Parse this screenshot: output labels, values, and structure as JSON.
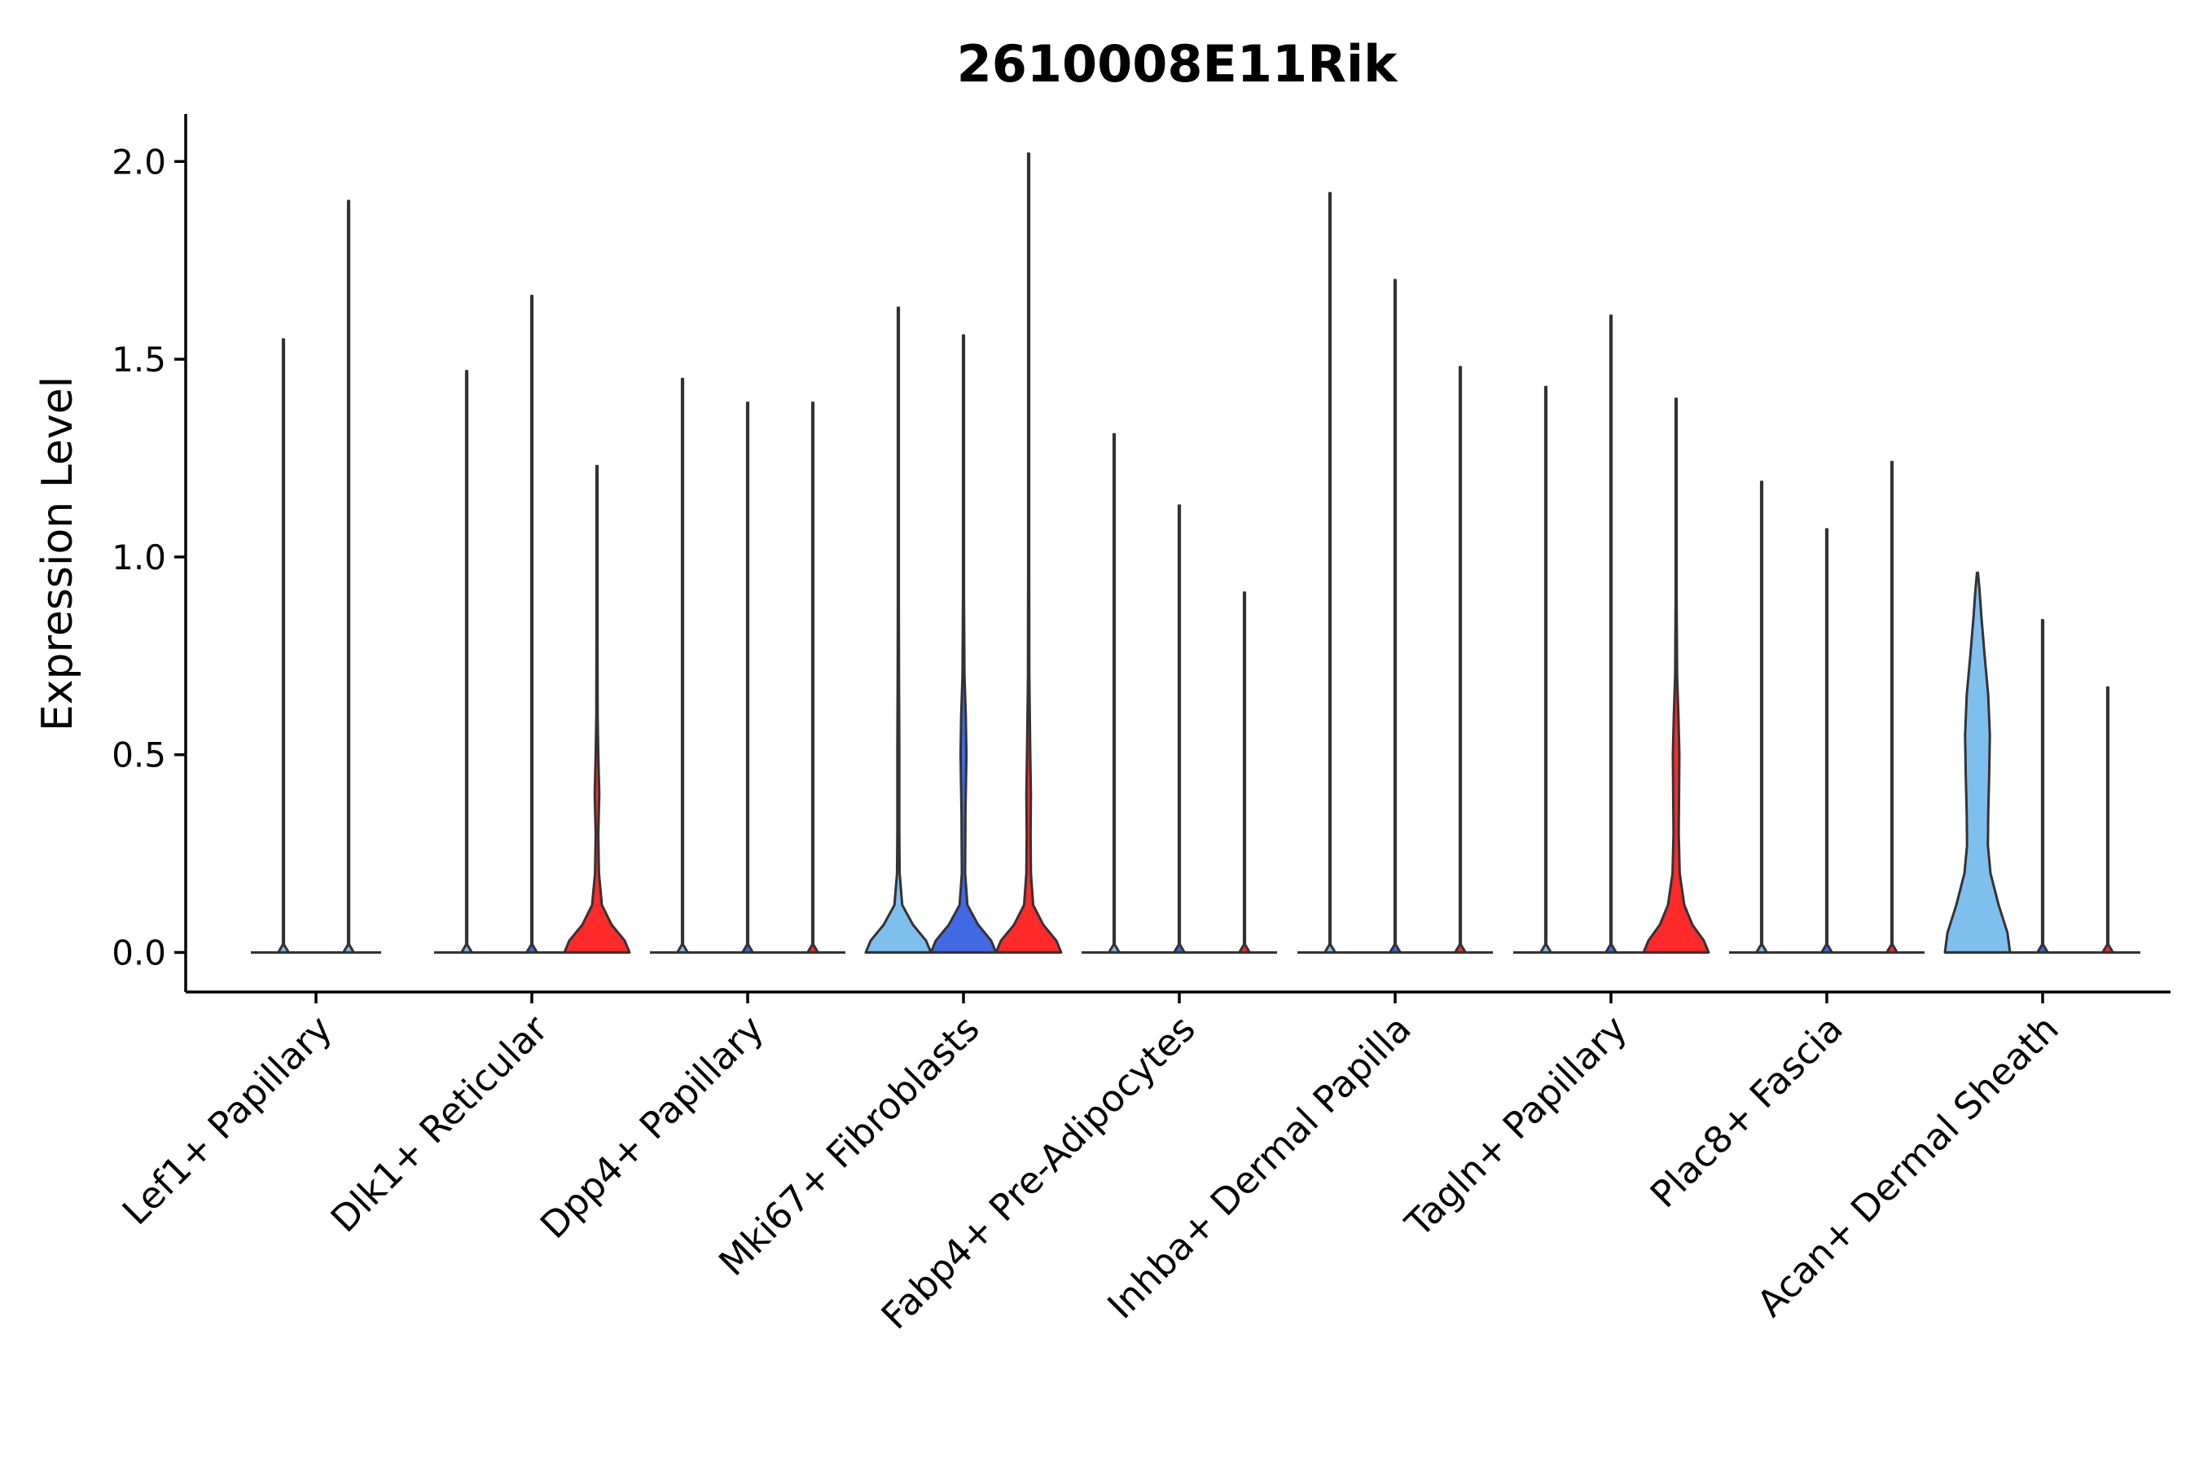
{
  "chart_data": {
    "type": "violin",
    "title": "2610008E11Rik",
    "xlabel": "",
    "ylabel": "Expression Level",
    "ylim": [
      -0.1,
      2.12
    ],
    "yticks": [
      0.0,
      0.5,
      1.0,
      1.5,
      2.0
    ],
    "ytick_labels": [
      "0.0",
      "0.5",
      "1.0",
      "1.5",
      "2.0"
    ],
    "grid": false,
    "legend": "none",
    "categories": [
      "Lef1+ Papillary",
      "Dlk1+ Reticular",
      "Dpp4+ Papillary",
      "Mki67+ Fibroblasts",
      "Fabp4+ Pre-Adipocytes",
      "Inhba+ Dermal Papilla",
      "Tagln+ Papillary",
      "Plac8+ Fascia",
      "Acan+ Dermal Sheath"
    ],
    "colors": {
      "light_blue": "#7fbfee",
      "blue": "#4169e1",
      "red": "#ff2a2a",
      "outline": "#333333"
    },
    "series": [
      {
        "name": "Lef1+ Papillary",
        "violins": [
          {
            "max": 1.55,
            "color": "light_blue",
            "shape": [
              [
                0,
                0.16
              ],
              [
                0.02,
                0.0
              ],
              [
                1.55,
                0.0
              ]
            ]
          },
          {
            "max": 1.9,
            "color": "light_blue",
            "shape": [
              [
                0,
                0.16
              ],
              [
                0.02,
                0.0
              ],
              [
                1.9,
                0.0
              ]
            ]
          }
        ]
      },
      {
        "name": "Dlk1+ Reticular",
        "violins": [
          {
            "max": 1.47,
            "color": "light_blue",
            "shape": [
              [
                0,
                0.16
              ],
              [
                0.02,
                0.0
              ],
              [
                1.47,
                0.0
              ]
            ]
          },
          {
            "max": 1.66,
            "color": "blue",
            "shape": [
              [
                0,
                0.16
              ],
              [
                0.02,
                0.0
              ],
              [
                1.66,
                0.0
              ]
            ]
          },
          {
            "max": 1.23,
            "color": "red",
            "shape": [
              [
                0,
                1.0
              ],
              [
                0.03,
                0.85
              ],
              [
                0.07,
                0.45
              ],
              [
                0.12,
                0.15
              ],
              [
                0.2,
                0.06
              ],
              [
                0.3,
                0.04
              ],
              [
                0.4,
                0.07
              ],
              [
                0.5,
                0.04
              ],
              [
                0.6,
                0.02
              ],
              [
                0.8,
                0.01
              ],
              [
                1.23,
                0.0
              ]
            ]
          }
        ]
      },
      {
        "name": "Dpp4+ Papillary",
        "violins": [
          {
            "max": 1.45,
            "color": "light_blue",
            "shape": [
              [
                0,
                0.16
              ],
              [
                0.02,
                0.0
              ],
              [
                1.45,
                0.0
              ]
            ]
          },
          {
            "max": 1.39,
            "color": "blue",
            "shape": [
              [
                0,
                0.16
              ],
              [
                0.02,
                0.0
              ],
              [
                1.39,
                0.0
              ]
            ]
          },
          {
            "max": 1.39,
            "color": "red",
            "shape": [
              [
                0,
                0.16
              ],
              [
                0.02,
                0.0
              ],
              [
                1.39,
                0.0
              ]
            ]
          }
        ]
      },
      {
        "name": "Mki67+ Fibroblasts",
        "violins": [
          {
            "max": 1.63,
            "color": "light_blue",
            "shape": [
              [
                0,
                1.0
              ],
              [
                0.03,
                0.85
              ],
              [
                0.07,
                0.45
              ],
              [
                0.12,
                0.12
              ],
              [
                0.2,
                0.04
              ],
              [
                0.3,
                0.03
              ],
              [
                0.5,
                0.03
              ],
              [
                0.7,
                0.02
              ],
              [
                0.9,
                0.01
              ],
              [
                1.63,
                0.0
              ]
            ]
          },
          {
            "max": 1.56,
            "color": "blue",
            "shape": [
              [
                0,
                1.0
              ],
              [
                0.03,
                0.85
              ],
              [
                0.07,
                0.45
              ],
              [
                0.12,
                0.12
              ],
              [
                0.2,
                0.05
              ],
              [
                0.35,
                0.06
              ],
              [
                0.5,
                0.09
              ],
              [
                0.6,
                0.07
              ],
              [
                0.7,
                0.03
              ],
              [
                0.9,
                0.01
              ],
              [
                1.56,
                0.0
              ]
            ]
          },
          {
            "max": 2.02,
            "color": "red",
            "shape": [
              [
                0,
                1.0
              ],
              [
                0.03,
                0.85
              ],
              [
                0.07,
                0.45
              ],
              [
                0.12,
                0.14
              ],
              [
                0.2,
                0.07
              ],
              [
                0.3,
                0.06
              ],
              [
                0.4,
                0.07
              ],
              [
                0.5,
                0.05
              ],
              [
                0.7,
                0.02
              ],
              [
                1.0,
                0.01
              ],
              [
                2.02,
                0.0
              ]
            ]
          }
        ]
      },
      {
        "name": "Fabp4+ Pre-Adipocytes",
        "violins": [
          {
            "max": 1.31,
            "color": "light_blue",
            "shape": [
              [
                0,
                0.16
              ],
              [
                0.02,
                0.0
              ],
              [
                1.31,
                0.0
              ]
            ]
          },
          {
            "max": 1.13,
            "color": "blue",
            "shape": [
              [
                0,
                0.16
              ],
              [
                0.02,
                0.0
              ],
              [
                1.13,
                0.0
              ]
            ]
          },
          {
            "max": 0.91,
            "color": "red",
            "shape": [
              [
                0,
                0.16
              ],
              [
                0.02,
                0.0
              ],
              [
                0.91,
                0.0
              ]
            ]
          }
        ]
      },
      {
        "name": "Inhba+ Dermal Papilla",
        "violins": [
          {
            "max": 1.92,
            "color": "light_blue",
            "shape": [
              [
                0,
                0.16
              ],
              [
                0.02,
                0.0
              ],
              [
                1.92,
                0.0
              ]
            ]
          },
          {
            "max": 1.7,
            "color": "blue",
            "shape": [
              [
                0,
                0.16
              ],
              [
                0.02,
                0.0
              ],
              [
                1.7,
                0.0
              ]
            ]
          },
          {
            "max": 1.48,
            "color": "red",
            "shape": [
              [
                0,
                0.16
              ],
              [
                0.02,
                0.0
              ],
              [
                1.48,
                0.0
              ]
            ]
          }
        ]
      },
      {
        "name": "Tagln+ Papillary",
        "violins": [
          {
            "max": 1.43,
            "color": "light_blue",
            "shape": [
              [
                0,
                0.16
              ],
              [
                0.02,
                0.0
              ],
              [
                1.43,
                0.0
              ]
            ]
          },
          {
            "max": 1.61,
            "color": "blue",
            "shape": [
              [
                0,
                0.16
              ],
              [
                0.02,
                0.0
              ],
              [
                1.61,
                0.0
              ]
            ]
          },
          {
            "max": 1.4,
            "color": "red",
            "shape": [
              [
                0,
                1.0
              ],
              [
                0.03,
                0.85
              ],
              [
                0.07,
                0.5
              ],
              [
                0.12,
                0.25
              ],
              [
                0.2,
                0.11
              ],
              [
                0.3,
                0.08
              ],
              [
                0.4,
                0.09
              ],
              [
                0.5,
                0.1
              ],
              [
                0.6,
                0.07
              ],
              [
                0.7,
                0.03
              ],
              [
                0.9,
                0.01
              ],
              [
                1.4,
                0.0
              ]
            ]
          }
        ]
      },
      {
        "name": "Plac8+ Fascia",
        "violins": [
          {
            "max": 1.19,
            "color": "light_blue",
            "shape": [
              [
                0,
                0.16
              ],
              [
                0.02,
                0.0
              ],
              [
                1.19,
                0.0
              ]
            ]
          },
          {
            "max": 1.07,
            "color": "blue",
            "shape": [
              [
                0,
                0.16
              ],
              [
                0.02,
                0.0
              ],
              [
                1.07,
                0.0
              ]
            ]
          },
          {
            "max": 1.24,
            "color": "red",
            "shape": [
              [
                0,
                0.16
              ],
              [
                0.02,
                0.0
              ],
              [
                1.24,
                0.0
              ]
            ]
          }
        ]
      },
      {
        "name": "Acan+ Dermal Sheath",
        "violins": [
          {
            "max": 0.96,
            "color": "light_blue",
            "shape": [
              [
                0,
                1.0
              ],
              [
                0.05,
                0.92
              ],
              [
                0.12,
                0.65
              ],
              [
                0.2,
                0.4
              ],
              [
                0.27,
                0.32
              ],
              [
                0.35,
                0.33
              ],
              [
                0.45,
                0.36
              ],
              [
                0.55,
                0.38
              ],
              [
                0.65,
                0.33
              ],
              [
                0.75,
                0.22
              ],
              [
                0.85,
                0.12
              ],
              [
                0.92,
                0.06
              ],
              [
                0.96,
                0.0
              ]
            ]
          },
          {
            "max": 0.84,
            "color": "blue",
            "shape": [
              [
                0,
                0.16
              ],
              [
                0.02,
                0.0
              ],
              [
                0.84,
                0.0
              ]
            ]
          },
          {
            "max": 0.67,
            "color": "red",
            "shape": [
              [
                0,
                0.16
              ],
              [
                0.02,
                0.0
              ],
              [
                0.67,
                0.0
              ]
            ]
          }
        ]
      }
    ]
  }
}
